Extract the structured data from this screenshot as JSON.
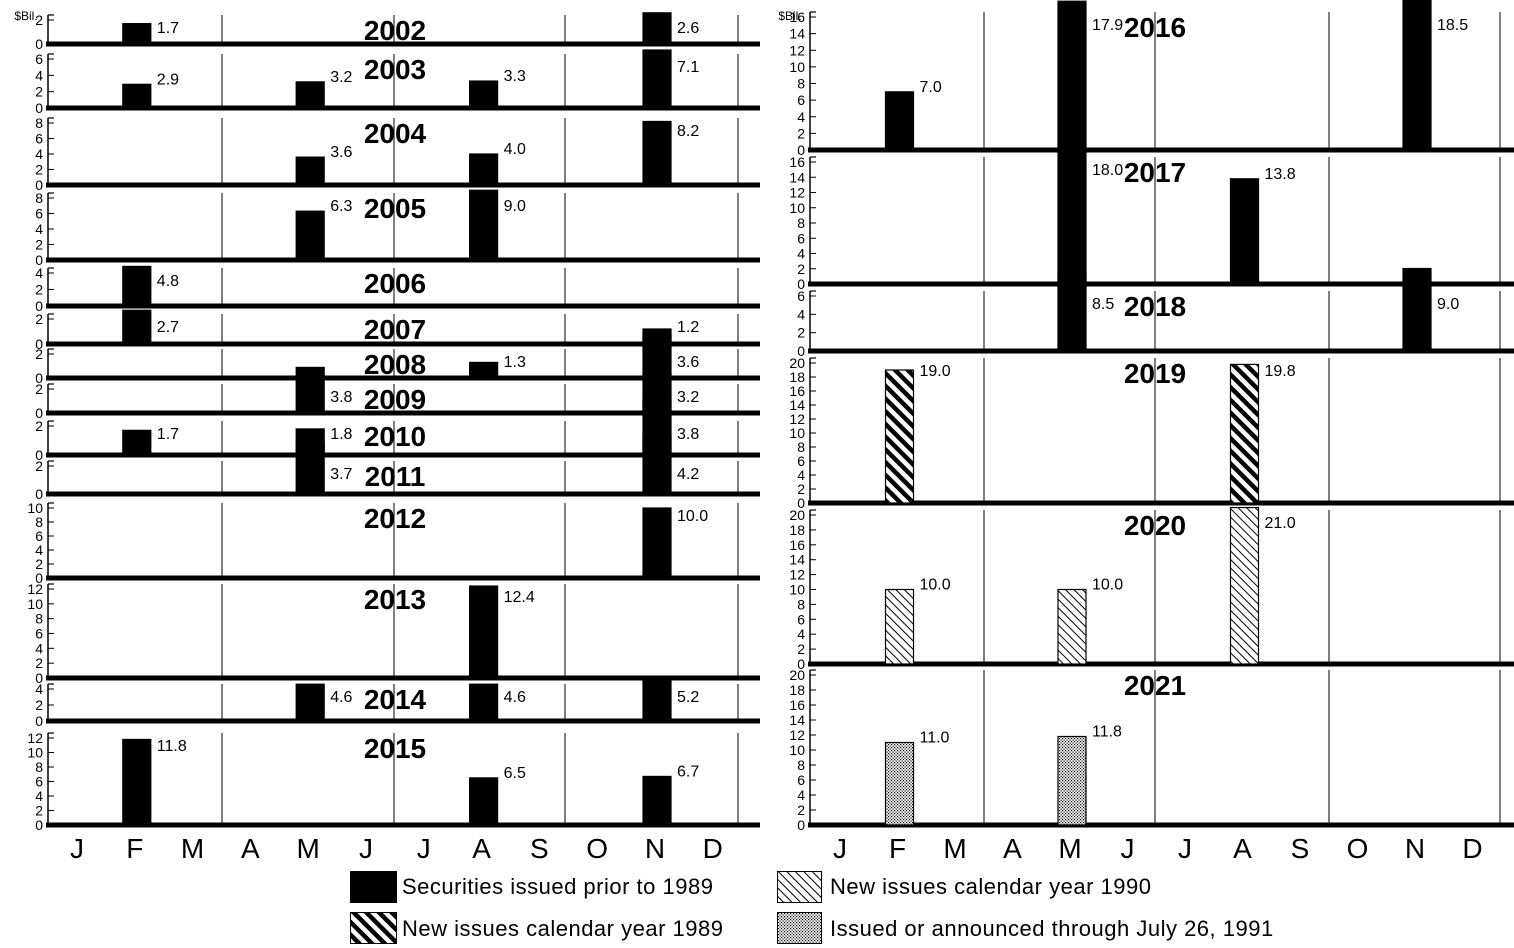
{
  "chart_data": {
    "type": "bar",
    "unit_label": "$Bil.",
    "months": [
      "J",
      "F",
      "M",
      "A",
      "M",
      "J",
      "J",
      "A",
      "S",
      "O",
      "N",
      "D"
    ],
    "categories": [
      "Securities issued prior to 1989",
      "New issues calendar year 1989",
      "New issues calendar year 1990",
      "Issued or announced through July 26, 1991"
    ],
    "legend": [
      {
        "key": "prior",
        "label": "Securities issued prior to 1989"
      },
      {
        "key": "new1989",
        "label": "New issues calendar year 1989"
      },
      {
        "key": "new1990",
        "label": "New issues calendar year 1990"
      },
      {
        "key": "new1991",
        "label": "Issued or announced through July 26, 1991"
      }
    ],
    "colors": {
      "ink": "#000000",
      "background": "#ffffff"
    },
    "panels": [
      {
        "year": "2002",
        "yticks": [
          0,
          2
        ],
        "bars": [
          {
            "month": "F",
            "value": 1.7,
            "label": "1.7",
            "category": "prior"
          },
          {
            "month": "N",
            "value": 2.6,
            "label": "2.6",
            "category": "prior"
          }
        ]
      },
      {
        "year": "2003",
        "yticks": [
          0,
          2,
          4,
          6
        ],
        "bars": [
          {
            "month": "F",
            "value": 2.9,
            "label": "2.9",
            "category": "prior"
          },
          {
            "month": "M2",
            "value": 3.2,
            "label": "3.2",
            "category": "prior"
          },
          {
            "month": "A2",
            "value": 3.3,
            "label": "3.3",
            "category": "prior"
          },
          {
            "month": "N",
            "value": 7.1,
            "label": "7.1",
            "category": "prior"
          }
        ]
      },
      {
        "year": "2004",
        "yticks": [
          0,
          2,
          4,
          6,
          8
        ],
        "bars": [
          {
            "month": "M2",
            "value": 3.6,
            "label": "3.6",
            "category": "prior"
          },
          {
            "month": "A2",
            "value": 4.0,
            "label": "4.0",
            "category": "prior"
          },
          {
            "month": "N",
            "value": 8.2,
            "label": "8.2",
            "category": "prior"
          }
        ]
      },
      {
        "year": "2005",
        "yticks": [
          0,
          2,
          4,
          6,
          8
        ],
        "bars": [
          {
            "month": "M2",
            "value": 6.3,
            "label": "6.3",
            "category": "prior"
          },
          {
            "month": "A2",
            "value": 9.0,
            "label": "9.0",
            "category": "prior"
          }
        ]
      },
      {
        "year": "2006",
        "yticks": [
          0,
          2,
          4
        ],
        "bars": [
          {
            "month": "F",
            "value": 4.8,
            "label": "4.8",
            "category": "prior"
          }
        ]
      },
      {
        "year": "2007",
        "yticks": [
          0,
          2
        ],
        "bars": [
          {
            "month": "F",
            "value": 2.7,
            "label": "2.7",
            "category": "prior"
          },
          {
            "month": "N",
            "value": 1.2,
            "label": "1.2",
            "category": "prior"
          }
        ]
      },
      {
        "year": "2008",
        "yticks": [
          0,
          2
        ],
        "bars": [
          {
            "month": "A2",
            "value": 1.3,
            "label": "1.3",
            "category": "prior"
          },
          {
            "month": "N",
            "value": 3.6,
            "label": "3.6",
            "category": "prior"
          }
        ]
      },
      {
        "year": "2009",
        "yticks": [
          0,
          2
        ],
        "bars": [
          {
            "month": "M2",
            "value": 3.8,
            "label": "3.8",
            "category": "prior"
          },
          {
            "month": "N",
            "value": 3.2,
            "label": "3.2",
            "category": "prior"
          }
        ]
      },
      {
        "year": "2010",
        "yticks": [
          0,
          2
        ],
        "bars": [
          {
            "month": "F",
            "value": 1.7,
            "label": "1.7",
            "category": "prior"
          },
          {
            "month": "M2",
            "value": 1.8,
            "label": "1.8",
            "category": "prior"
          },
          {
            "month": "N",
            "value": 3.8,
            "label": "3.8",
            "category": "prior"
          }
        ]
      },
      {
        "year": "2011",
        "yticks": [
          0,
          2
        ],
        "bars": [
          {
            "month": "M2",
            "value": 3.7,
            "label": "3.7",
            "category": "prior"
          },
          {
            "month": "N",
            "value": 4.2,
            "label": "4.2",
            "category": "prior"
          }
        ]
      },
      {
        "year": "2012",
        "yticks": [
          0,
          2,
          4,
          6,
          8,
          10
        ],
        "bars": [
          {
            "month": "N",
            "value": 10.0,
            "label": "10.0",
            "category": "prior"
          }
        ]
      },
      {
        "year": "2013",
        "yticks": [
          0,
          2,
          4,
          6,
          8,
          10,
          12
        ],
        "bars": [
          {
            "month": "A2",
            "value": 12.4,
            "label": "12.4",
            "category": "prior"
          }
        ]
      },
      {
        "year": "2014",
        "yticks": [
          0,
          2,
          4
        ],
        "bars": [
          {
            "month": "M2",
            "value": 4.6,
            "label": "4.6",
            "category": "prior"
          },
          {
            "month": "A2",
            "value": 4.6,
            "label": "4.6",
            "category": "prior"
          },
          {
            "month": "N",
            "value": 5.2,
            "label": "5.2",
            "category": "prior"
          }
        ]
      },
      {
        "year": "2015",
        "yticks": [
          0,
          2,
          4,
          6,
          8,
          10,
          12
        ],
        "bars": [
          {
            "month": "F",
            "value": 11.8,
            "label": "11.8",
            "category": "prior"
          },
          {
            "month": "A2",
            "value": 6.5,
            "label": "6.5",
            "category": "prior"
          },
          {
            "month": "N",
            "value": 6.7,
            "label": "6.7",
            "category": "prior"
          }
        ]
      },
      {
        "year": "2016",
        "yticks": [
          0,
          2,
          4,
          6,
          8,
          10,
          12,
          14,
          16
        ],
        "bars": [
          {
            "month": "F",
            "value": 7.0,
            "label": "7.0",
            "category": "prior"
          },
          {
            "month": "M2",
            "value": 17.9,
            "label": "17.9",
            "category": "prior"
          },
          {
            "month": "N",
            "value": 18.5,
            "label": "18.5",
            "category": "prior"
          }
        ]
      },
      {
        "year": "2017",
        "yticks": [
          0,
          2,
          4,
          6,
          8,
          10,
          12,
          14,
          16
        ],
        "bars": [
          {
            "month": "M2",
            "value": 18.0,
            "label": "18.0",
            "category": "prior"
          },
          {
            "month": "A2",
            "value": 13.8,
            "label": "13.8",
            "category": "prior"
          }
        ]
      },
      {
        "year": "2018",
        "yticks": [
          0,
          2,
          4,
          6
        ],
        "bars": [
          {
            "month": "M2",
            "value": 8.5,
            "label": "8.5",
            "category": "prior"
          },
          {
            "month": "N",
            "value": 9.0,
            "label": "9.0",
            "category": "prior"
          }
        ]
      },
      {
        "year": "2019",
        "yticks": [
          0,
          2,
          4,
          6,
          8,
          10,
          12,
          14,
          16,
          18,
          20
        ],
        "bars": [
          {
            "month": "F",
            "value": 19.0,
            "label": "19.0",
            "category": "new1989"
          },
          {
            "month": "A2",
            "value": 19.8,
            "label": "19.8",
            "category": "new1989"
          }
        ]
      },
      {
        "year": "2020",
        "yticks": [
          0,
          2,
          4,
          6,
          8,
          10,
          12,
          14,
          16,
          18,
          20
        ],
        "bars": [
          {
            "month": "F",
            "value": 10.0,
            "label": "10.0",
            "category": "new1990"
          },
          {
            "month": "M2",
            "value": 10.0,
            "label": "10.0",
            "category": "new1990"
          },
          {
            "month": "A2",
            "value": 21.0,
            "label": "21.0",
            "category": "new1990"
          }
        ]
      },
      {
        "year": "2021",
        "yticks": [
          0,
          2,
          4,
          6,
          8,
          10,
          12,
          14,
          16,
          18,
          20
        ],
        "bars": [
          {
            "month": "F",
            "value": 11.0,
            "label": "11.0",
            "category": "new1991"
          },
          {
            "month": "M2",
            "value": 11.8,
            "label": "11.8",
            "category": "new1991"
          }
        ]
      }
    ]
  }
}
